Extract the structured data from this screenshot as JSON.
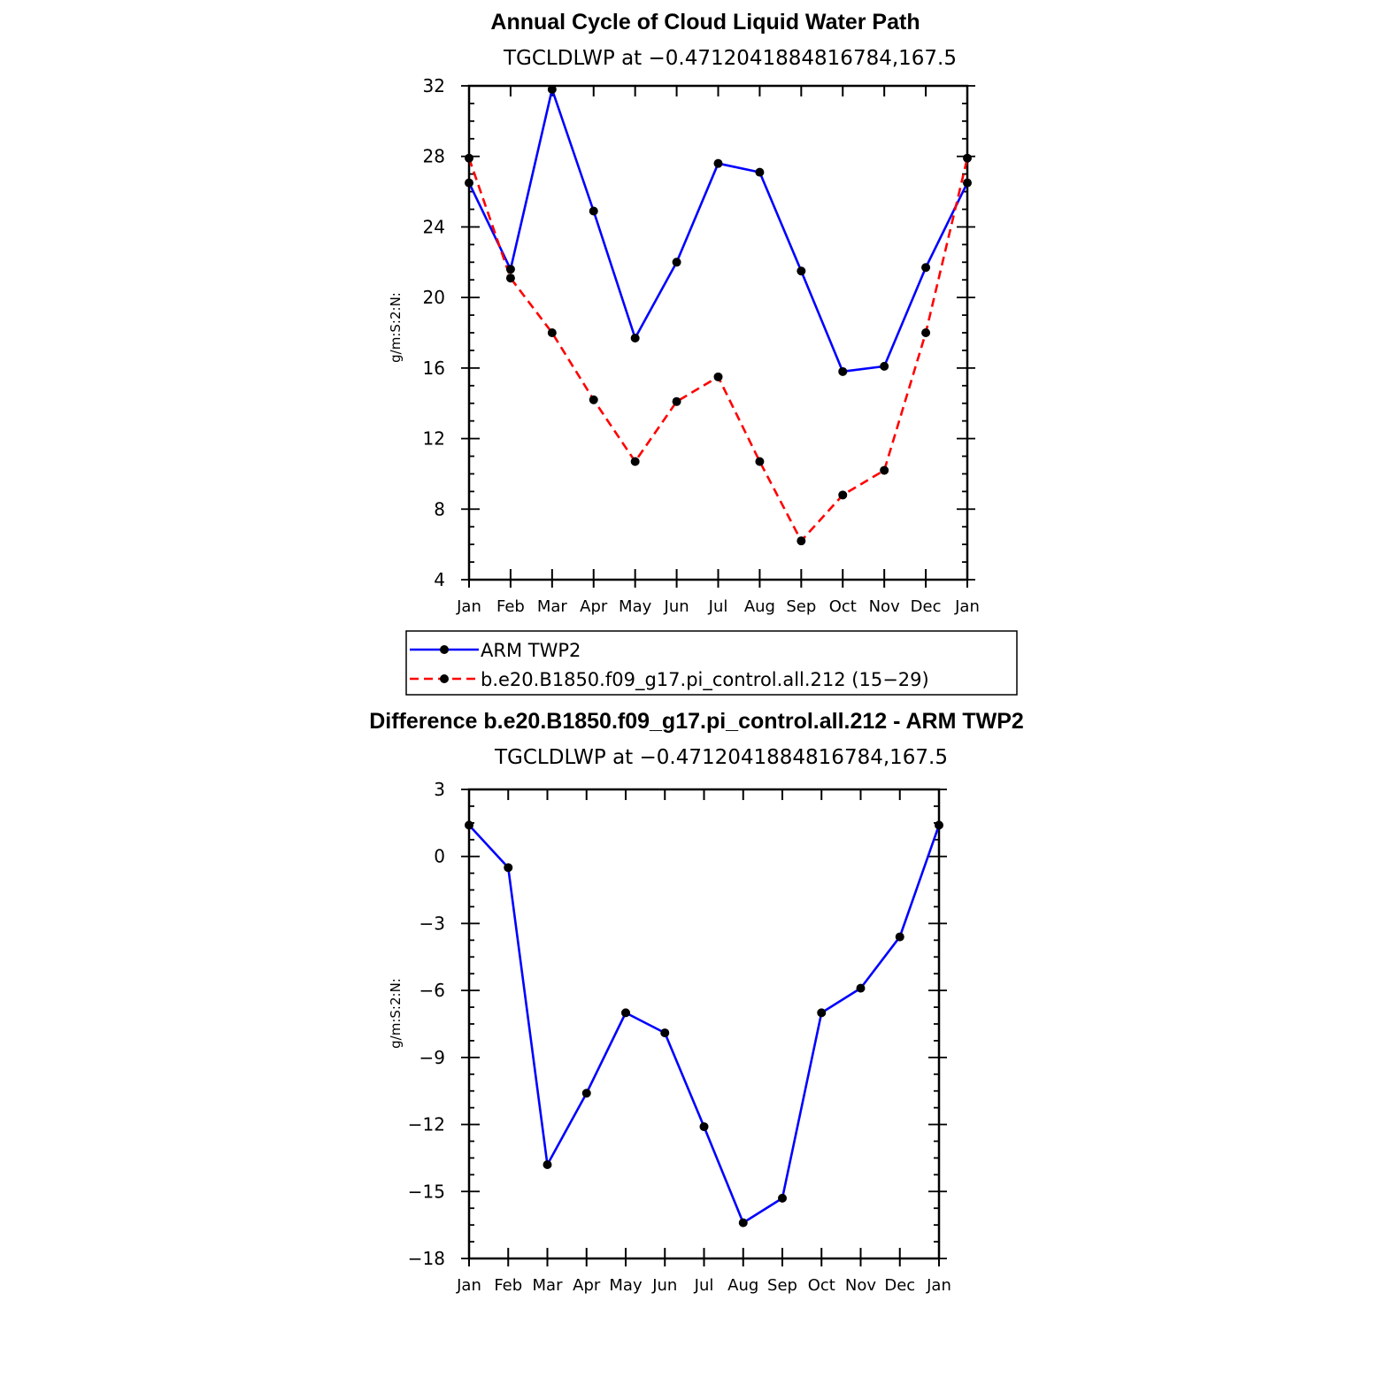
{
  "chart_data": [
    {
      "type": "line",
      "title": "Annual Cycle of Cloud Liquid Water Path",
      "subtitle": "TGCLDLWP  at  −0.4712041884816784,167.5",
      "ylabel": "g/m:S:2:N:",
      "categories": [
        "Jan",
        "Feb",
        "Mar",
        "Apr",
        "May",
        "Jun",
        "Jul",
        "Aug",
        "Sep",
        "Oct",
        "Nov",
        "Dec",
        "Jan"
      ],
      "ylim": [
        4,
        32
      ],
      "yticks": [
        "32",
        "28",
        "24",
        "20",
        "16",
        "12",
        "8",
        "4"
      ],
      "ytick_values": [
        32,
        28,
        24,
        20,
        16,
        12,
        8,
        4
      ],
      "series": [
        {
          "name": "ARM TWP2",
          "color": "#0000ff",
          "dash": "solid",
          "values": [
            26.5,
            21.6,
            31.8,
            24.9,
            17.7,
            22.0,
            27.6,
            27.1,
            21.5,
            15.8,
            16.1,
            21.7,
            26.5
          ]
        },
        {
          "name": "b.e20.B1850.f09_g17.pi_control.all.212 (15−29)",
          "color": "#ff0000",
          "dash": "dashed",
          "values": [
            27.9,
            21.1,
            18.0,
            14.2,
            10.7,
            14.1,
            15.5,
            10.7,
            6.2,
            8.8,
            10.2,
            18.0,
            27.9
          ]
        }
      ]
    },
    {
      "type": "line",
      "title": "Difference b.e20.B1850.f09_g17.pi_control.all.212 - ARM TWP2",
      "subtitle": "TGCLDLWP  at  −0.4712041884816784,167.5",
      "ylabel": "g/m:S:2:N:",
      "categories": [
        "Jan",
        "Feb",
        "Mar",
        "Apr",
        "May",
        "Jun",
        "Jul",
        "Aug",
        "Sep",
        "Oct",
        "Nov",
        "Dec",
        "Jan"
      ],
      "ylim": [
        -18,
        3
      ],
      "yticks": [
        "3",
        "0",
        "−3",
        "−6",
        "−9",
        "−12",
        "−15",
        "−18"
      ],
      "ytick_values": [
        3,
        0,
        -3,
        -6,
        -9,
        -12,
        -15,
        -18
      ],
      "series": [
        {
          "color": "#0000ff",
          "dash": "solid",
          "values": [
            1.4,
            -0.5,
            -13.8,
            -10.6,
            -7.0,
            -7.9,
            -12.1,
            -16.4,
            -15.3,
            -7.0,
            -5.9,
            -3.6,
            1.4
          ]
        }
      ]
    }
  ]
}
